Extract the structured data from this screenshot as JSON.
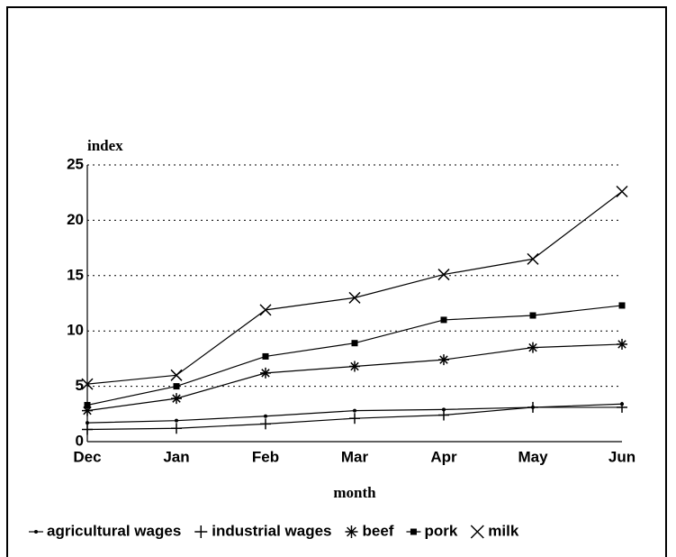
{
  "chart_data": {
    "type": "line",
    "xlabel": "month",
    "ylabel": "index",
    "categories": [
      "Dec",
      "Jan",
      "Feb",
      "Mar",
      "Apr",
      "May",
      "Jun"
    ],
    "ylim": [
      0,
      25
    ],
    "yticks": [
      0,
      5,
      10,
      15,
      20,
      25
    ],
    "grid": true,
    "legend": "bottom",
    "series": [
      {
        "name": "agricultural wages",
        "color": "#000000",
        "marker": "dot",
        "values": [
          1.7,
          1.9,
          2.3,
          2.8,
          2.9,
          3.1,
          3.4
        ]
      },
      {
        "name": "industrial wages",
        "color": "#000000",
        "marker": "plus",
        "values": [
          1.1,
          1.2,
          1.6,
          2.1,
          2.4,
          3.1,
          3.1
        ]
      },
      {
        "name": "beef",
        "color": "#000000",
        "marker": "star",
        "values": [
          2.8,
          3.9,
          6.2,
          6.8,
          7.4,
          8.5,
          8.8
        ]
      },
      {
        "name": "pork",
        "color": "#000000",
        "marker": "square",
        "values": [
          3.3,
          5.0,
          7.7,
          8.9,
          11.0,
          11.4,
          12.3
        ]
      },
      {
        "name": "milk",
        "color": "#000000",
        "marker": "x",
        "values": [
          5.2,
          6.0,
          11.9,
          13.0,
          15.1,
          16.5,
          22.6
        ]
      }
    ]
  }
}
